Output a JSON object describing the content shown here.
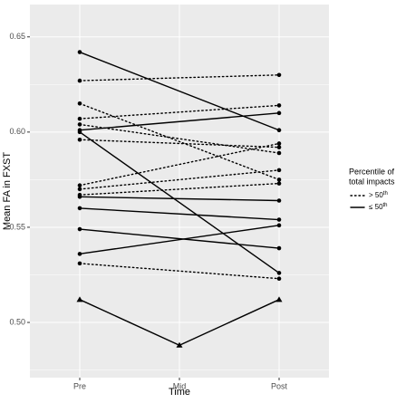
{
  "chart_data": {
    "type": "line",
    "categories": [
      "Pre",
      "Mid",
      "Post"
    ],
    "xlabel": "Time",
    "ylabel": "Mean FA in FXST",
    "ylim": [
      0.471,
      0.667
    ],
    "yticks": [
      {
        "value": 0.5,
        "label": "0.50"
      },
      {
        "value": 0.55,
        "label": "0.55"
      },
      {
        "value": 0.6,
        "label": "0.60"
      },
      {
        "value": 0.65,
        "label": "0.65"
      }
    ],
    "yminor": [
      0.475,
      0.525,
      0.575,
      0.625
    ],
    "grid": true,
    "color": "#000000",
    "legend": {
      "title": [
        "Percentile of",
        "total impacts"
      ],
      "items": [
        {
          "label": "> 50",
          "sup": "th",
          "linetype": "dotted"
        },
        {
          "label": "≤ 50",
          "sup": "th",
          "linetype": "solid"
        }
      ]
    },
    "series": [
      {
        "linetype": "solid",
        "marker": "circle",
        "x": [
          "Pre",
          "Post"
        ],
        "values": [
          0.642,
          0.601
        ]
      },
      {
        "linetype": "dotted",
        "marker": "circle",
        "x": [
          "Pre",
          "Post"
        ],
        "values": [
          0.627,
          0.63
        ]
      },
      {
        "linetype": "dotted",
        "marker": "circle",
        "x": [
          "Pre",
          "Post"
        ],
        "values": [
          0.615,
          0.575
        ]
      },
      {
        "linetype": "dotted",
        "marker": "circle",
        "x": [
          "Pre",
          "Post"
        ],
        "values": [
          0.607,
          0.614
        ]
      },
      {
        "linetype": "solid",
        "marker": "circle",
        "x": [
          "Pre",
          "Post"
        ],
        "values": [
          0.601,
          0.61
        ]
      },
      {
        "linetype": "solid",
        "marker": "circle",
        "x": [
          "Pre",
          "Post"
        ],
        "values": [
          0.6,
          0.526
        ]
      },
      {
        "linetype": "dotted",
        "marker": "circle",
        "x": [
          "Pre",
          "Post"
        ],
        "values": [
          0.604,
          0.589
        ]
      },
      {
        "linetype": "dotted",
        "marker": "circle",
        "x": [
          "Pre",
          "Post"
        ],
        "values": [
          0.596,
          0.592
        ]
      },
      {
        "linetype": "dotted",
        "marker": "circle",
        "x": [
          "Pre",
          "Post"
        ],
        "values": [
          0.572,
          0.594
        ]
      },
      {
        "linetype": "dotted",
        "marker": "circle",
        "x": [
          "Pre",
          "Post"
        ],
        "values": [
          0.57,
          0.58
        ]
      },
      {
        "linetype": "dotted",
        "marker": "circle",
        "x": [
          "Pre",
          "Post"
        ],
        "values": [
          0.567,
          0.573
        ]
      },
      {
        "linetype": "solid",
        "marker": "circle",
        "x": [
          "Pre",
          "Post"
        ],
        "values": [
          0.566,
          0.564
        ]
      },
      {
        "linetype": "solid",
        "marker": "circle",
        "x": [
          "Pre",
          "Post"
        ],
        "values": [
          0.56,
          0.554
        ]
      },
      {
        "linetype": "solid",
        "marker": "circle",
        "x": [
          "Pre",
          "Post"
        ],
        "values": [
          0.549,
          0.539
        ]
      },
      {
        "linetype": "solid",
        "marker": "circle",
        "x": [
          "Pre",
          "Post"
        ],
        "values": [
          0.536,
          0.551
        ]
      },
      {
        "linetype": "dotted",
        "marker": "circle",
        "x": [
          "Pre",
          "Post"
        ],
        "values": [
          0.531,
          0.523
        ]
      },
      {
        "linetype": "solid",
        "marker": "triangle",
        "x": [
          "Pre",
          "Mid",
          "Post"
        ],
        "values": [
          0.512,
          0.488,
          0.512
        ]
      }
    ]
  }
}
